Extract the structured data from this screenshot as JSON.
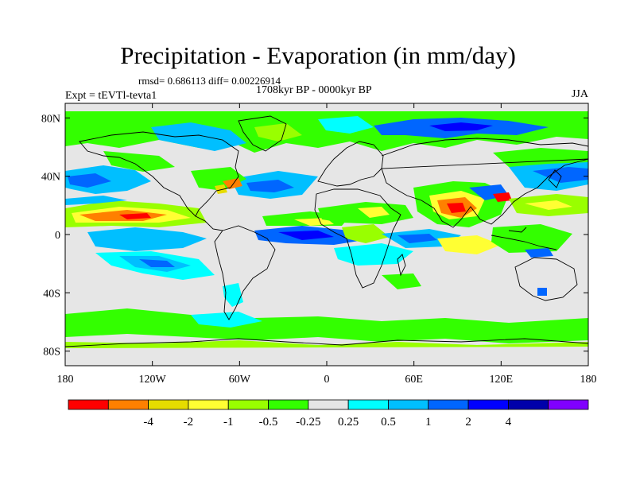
{
  "plot": {
    "title": "Precipitation - Evaporation (in mm/day)",
    "stats": "rmsd= 0.686113 diff= 0.00226914",
    "period": "1708kyr BP - 0000kyr BP",
    "experiment": "Expt = tEVTl-tevta1",
    "season": "JJA"
  },
  "axes": {
    "x_ticks": [
      {
        "label": "180",
        "lon": -180
      },
      {
        "label": "120W",
        "lon": -120
      },
      {
        "label": "60W",
        "lon": -60
      },
      {
        "label": "0",
        "lon": 0
      },
      {
        "label": "60E",
        "lon": 60
      },
      {
        "label": "120E",
        "lon": 120
      },
      {
        "label": "180",
        "lon": 180
      }
    ],
    "y_ticks": [
      {
        "label": "80N",
        "lat": 80
      },
      {
        "label": "40N",
        "lat": 40
      },
      {
        "label": "0",
        "lat": 0
      },
      {
        "label": "40S",
        "lat": -40
      },
      {
        "label": "80S",
        "lat": -80
      }
    ],
    "lon_range": [
      -180,
      180
    ],
    "lat_range": [
      -90,
      90
    ]
  },
  "colorbar": {
    "colors": [
      "#ff0000",
      "#ff8000",
      "#e6dc00",
      "#ffff33",
      "#99ff00",
      "#33ff00",
      "#e6e6e6",
      "#00ffff",
      "#00bfff",
      "#0066ff",
      "#0000ff",
      "#0000aa",
      "#8000ff"
    ],
    "labels": [
      "-4",
      "-2",
      "-1",
      "-0.5",
      "-0.25",
      "0.25",
      "0.5",
      "1",
      "2",
      "4"
    ],
    "boundaries": [
      -4,
      -2,
      -1,
      -0.5,
      -0.25,
      0.25,
      0.5,
      1,
      2,
      4
    ]
  },
  "map_colors": {
    "background": "#e6e6e6",
    "coast": "#000000"
  }
}
